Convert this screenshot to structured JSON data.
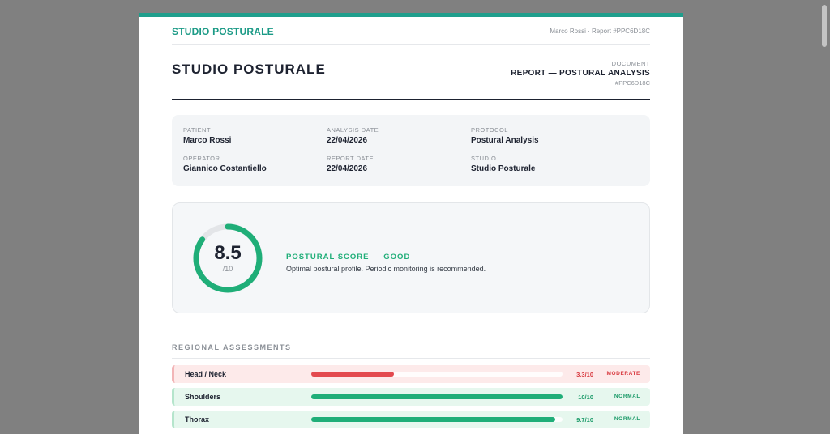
{
  "topbar": {
    "brand": "STUDIO POSTURALE",
    "meta": "Marco Rossi · Report #PPC6D18C"
  },
  "header": {
    "title": "STUDIO POSTURALE",
    "doc_kicker": "DOCUMENT",
    "doc_name": "REPORT — POSTURAL ANALYSIS",
    "doc_id": "#PPC6D18C"
  },
  "info": {
    "patient": {
      "label": "PATIENT",
      "value": "Marco Rossi"
    },
    "analysis_date": {
      "label": "ANALYSIS DATE",
      "value": "22/04/2026"
    },
    "protocol": {
      "label": "PROTOCOL",
      "value": "Postural Analysis"
    },
    "operator": {
      "label": "OPERATOR",
      "value": "Giannico Costantiello"
    },
    "report_date": {
      "label": "REPORT DATE",
      "value": "22/04/2026"
    },
    "studio": {
      "label": "STUDIO",
      "value": "Studio Posturale"
    }
  },
  "score": {
    "value": "8.5",
    "max": "/10",
    "fraction": 0.85,
    "label": "POSTURAL SCORE — GOOD",
    "description": "Optimal postural profile. Periodic monitoring is recommended.",
    "color": "#1fae78"
  },
  "regional": {
    "title": "REGIONAL ASSESSMENTS",
    "rows": [
      {
        "name": "Head / Neck",
        "value": "3.3/10",
        "status": "MODERATE",
        "level": 0.33,
        "bar_color": "#e34a4f",
        "bg": "#fdeaea",
        "border": "#f2b5b7",
        "text_color": "#d8383e"
      },
      {
        "name": "Shoulders",
        "value": "10/10",
        "status": "NORMAL",
        "level": 1.0,
        "bar_color": "#1fae78",
        "bg": "#e6f7ee",
        "border": "#b5e5cc",
        "text_color": "#1a9a68"
      },
      {
        "name": "Thorax",
        "value": "9.7/10",
        "status": "NORMAL",
        "level": 0.97,
        "bar_color": "#1fae78",
        "bg": "#e6f7ee",
        "border": "#b5e5cc",
        "text_color": "#1a9a68"
      }
    ]
  }
}
